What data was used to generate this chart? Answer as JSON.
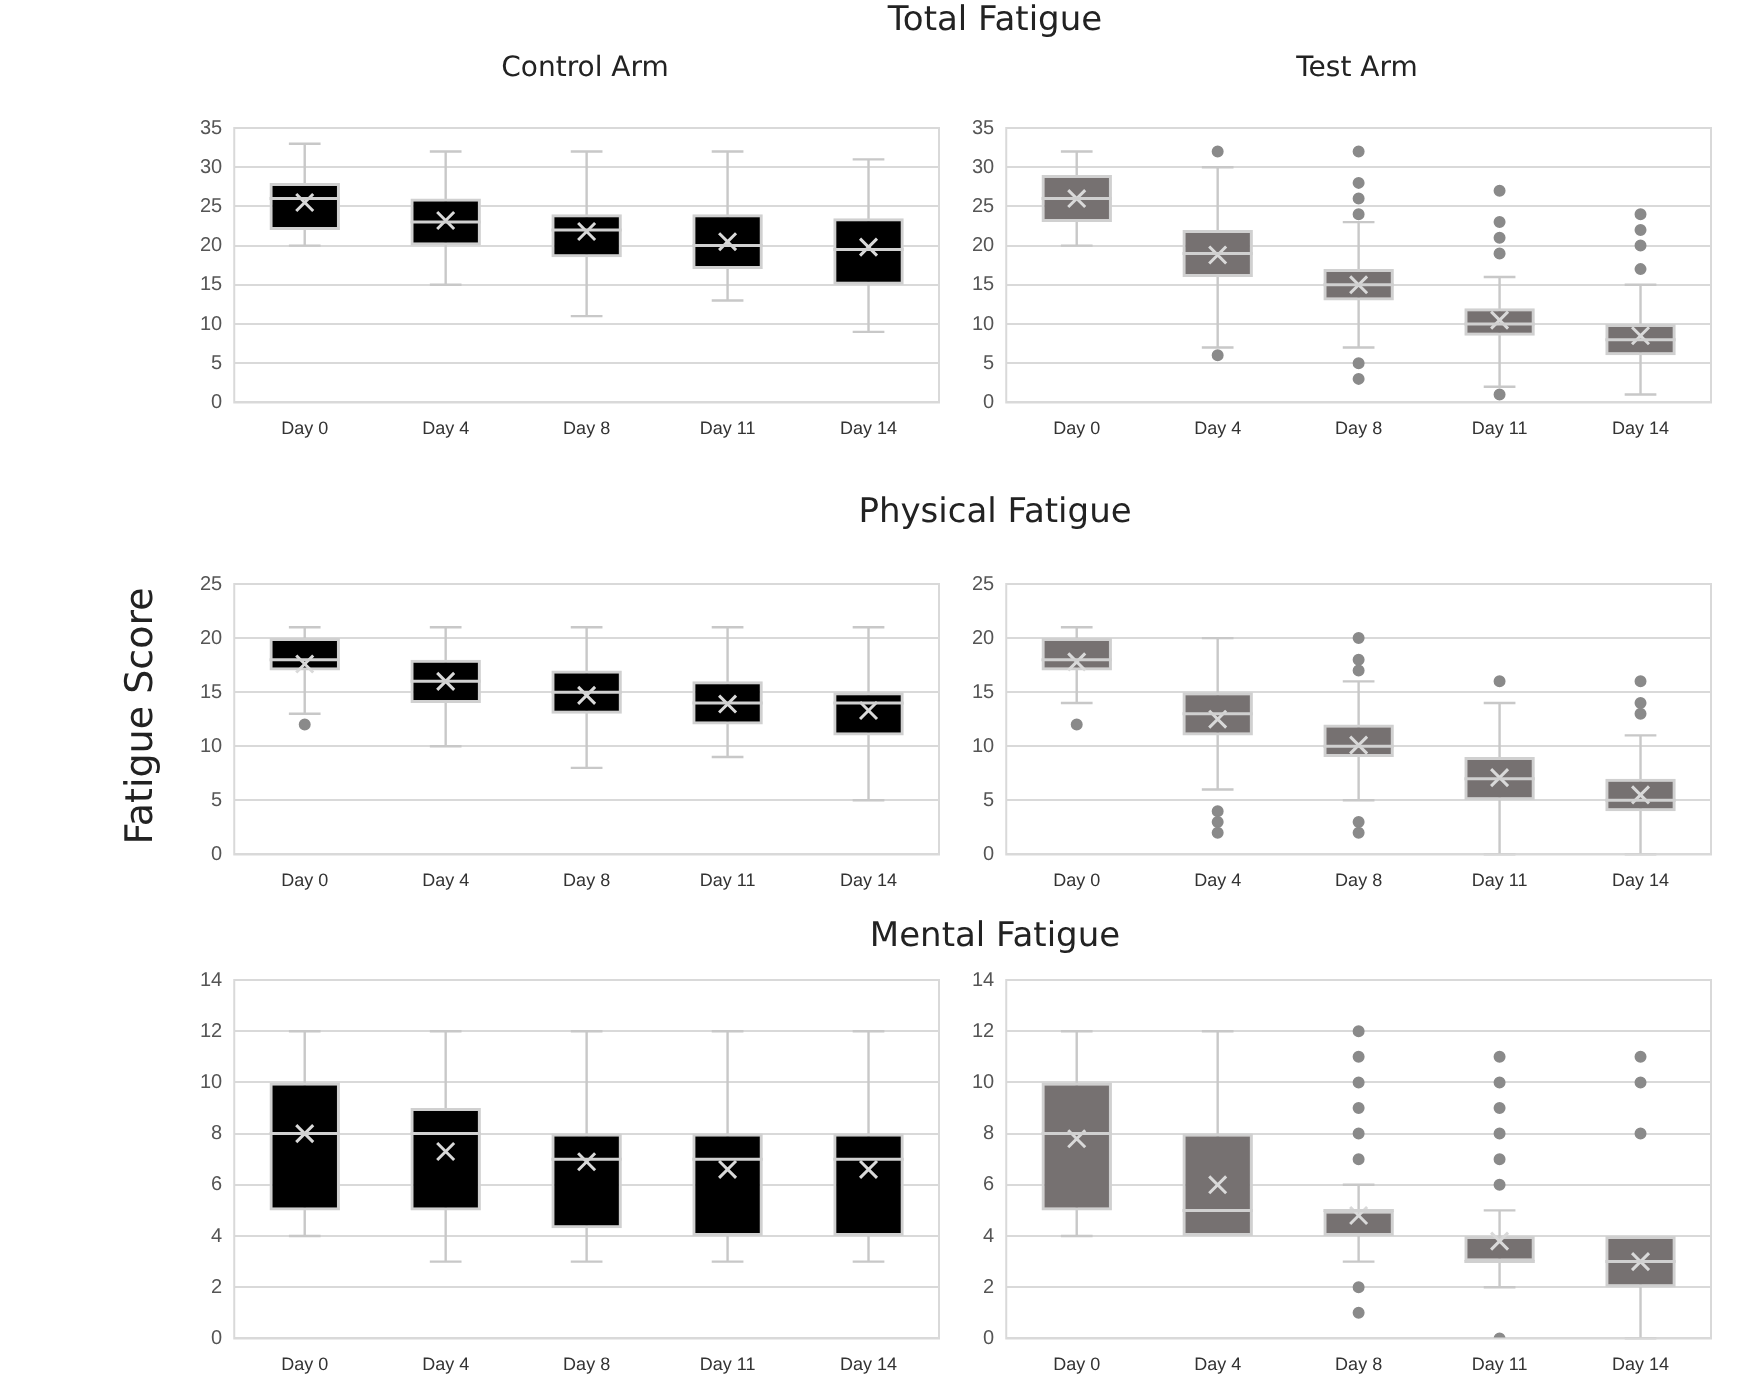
{
  "chart_data": [
    {
      "type": "box",
      "title": "Total Fatigue",
      "subtitle": "Control Arm",
      "categories": [
        "Day 0",
        "Day 4",
        "Day 8",
        "Day 11",
        "Day 14"
      ],
      "color": "#000000",
      "ylim": [
        0,
        35
      ],
      "yticks": [
        0,
        5,
        10,
        15,
        20,
        25,
        30,
        35
      ],
      "grid": "y",
      "marker": "cross",
      "boxes": [
        {
          "low": 20,
          "q1": 22,
          "median": 26,
          "q3": 28,
          "high": 33,
          "mean": 25.5
        },
        {
          "low": 15,
          "q1": 20,
          "median": 23,
          "q3": 26,
          "high": 32,
          "mean": 23.2
        },
        {
          "low": 11,
          "q1": 18.5,
          "median": 22,
          "q3": 24,
          "high": 32,
          "mean": 21.8
        },
        {
          "low": 13,
          "q1": 17,
          "median": 20,
          "q3": 24,
          "high": 32,
          "mean": 20.5
        },
        {
          "low": 9,
          "q1": 15,
          "median": 19.5,
          "q3": 23.5,
          "high": 31,
          "mean": 19.8
        }
      ]
    },
    {
      "type": "box",
      "subtitle": "Test Arm",
      "categories": [
        "Day 0",
        "Day 4",
        "Day 8",
        "Day 11",
        "Day 14"
      ],
      "color": "#767171",
      "ylim": [
        0,
        35
      ],
      "yticks": [
        0,
        5,
        10,
        15,
        20,
        25,
        30,
        35
      ],
      "grid": "y",
      "marker": "cross",
      "boxes": [
        {
          "low": 20,
          "q1": 23,
          "median": 26,
          "q3": 29,
          "high": 32,
          "mean": 26
        },
        {
          "low": 7,
          "q1": 16,
          "median": 19,
          "q3": 22,
          "high": 30,
          "mean": 18.8,
          "outliers": [
            32,
            6
          ]
        },
        {
          "low": 7,
          "q1": 13,
          "median": 15,
          "q3": 17,
          "high": 23,
          "mean": 15,
          "outliers": [
            32,
            28,
            26,
            24,
            5,
            3
          ]
        },
        {
          "low": 2,
          "q1": 8.5,
          "median": 10,
          "q3": 12,
          "high": 16,
          "mean": 10.5,
          "outliers": [
            27,
            23,
            21,
            19,
            1
          ]
        },
        {
          "low": 1,
          "q1": 6,
          "median": 8,
          "q3": 10,
          "high": 15,
          "mean": 8.5,
          "outliers": [
            24,
            22,
            20,
            17
          ]
        }
      ]
    },
    {
      "type": "box",
      "title": "Physical Fatigue",
      "ylabel": "Fatigue Score",
      "categories": [
        "Day 0",
        "Day 4",
        "Day 8",
        "Day 11",
        "Day 14"
      ],
      "color": "#000000",
      "ylim": [
        0,
        25
      ],
      "yticks": [
        0,
        5,
        10,
        15,
        20,
        25
      ],
      "grid": "y",
      "marker": "cross",
      "boxes": [
        {
          "low": 13,
          "q1": 17,
          "median": 18,
          "q3": 20,
          "high": 21,
          "mean": 17.6,
          "outliers": [
            12
          ]
        },
        {
          "low": 10,
          "q1": 14,
          "median": 16,
          "q3": 18,
          "high": 21,
          "mean": 16
        },
        {
          "low": 8,
          "q1": 13,
          "median": 15,
          "q3": 17,
          "high": 21,
          "mean": 14.7
        },
        {
          "low": 9,
          "q1": 12,
          "median": 14,
          "q3": 16,
          "high": 21,
          "mean": 13.9
        },
        {
          "low": 5,
          "q1": 11,
          "median": 14,
          "q3": 15,
          "high": 21,
          "mean": 13.3
        }
      ]
    },
    {
      "type": "box",
      "categories": [
        "Day 0",
        "Day 4",
        "Day 8",
        "Day 11",
        "Day 14"
      ],
      "color": "#767171",
      "ylim": [
        0,
        25
      ],
      "yticks": [
        0,
        5,
        10,
        15,
        20,
        25
      ],
      "grid": "y",
      "marker": "cross",
      "boxes": [
        {
          "low": 14,
          "q1": 17,
          "median": 18,
          "q3": 20,
          "high": 21,
          "mean": 17.8,
          "outliers": [
            12
          ]
        },
        {
          "low": 6,
          "q1": 11,
          "median": 13,
          "q3": 15,
          "high": 20,
          "mean": 12.5,
          "outliers": [
            4,
            3,
            2
          ]
        },
        {
          "low": 5,
          "q1": 9,
          "median": 10,
          "q3": 12,
          "high": 16,
          "mean": 10.1,
          "outliers": [
            20,
            18,
            17,
            3,
            2
          ]
        },
        {
          "low": 0,
          "q1": 5,
          "median": 7,
          "q3": 9,
          "high": 14,
          "mean": 7.1,
          "outliers": [
            16
          ]
        },
        {
          "low": 0,
          "q1": 4,
          "median": 5,
          "q3": 7,
          "high": 11,
          "mean": 5.5,
          "outliers": [
            16,
            14,
            13
          ]
        }
      ]
    },
    {
      "type": "box",
      "title": "Mental Fatigue",
      "categories": [
        "Day 0",
        "Day 4",
        "Day 8",
        "Day 11",
        "Day 14"
      ],
      "color": "#000000",
      "ylim": [
        0,
        14
      ],
      "yticks": [
        0,
        2,
        4,
        6,
        8,
        10,
        12,
        14
      ],
      "grid": "y",
      "marker": "cross",
      "boxes": [
        {
          "low": 4,
          "q1": 5,
          "median": 8,
          "q3": 10,
          "high": 12,
          "mean": 8
        },
        {
          "low": 3,
          "q1": 5,
          "median": 8,
          "q3": 9,
          "high": 12,
          "mean": 7.3
        },
        {
          "low": 3,
          "q1": 4.3,
          "median": 7,
          "q3": 8,
          "high": 12,
          "mean": 6.9
        },
        {
          "low": 3,
          "q1": 4,
          "median": 7,
          "q3": 8,
          "high": 12,
          "mean": 6.6
        },
        {
          "low": 3,
          "q1": 4,
          "median": 7,
          "q3": 8,
          "high": 12,
          "mean": 6.6
        }
      ]
    },
    {
      "type": "box",
      "categories": [
        "Day 0",
        "Day 4",
        "Day 8",
        "Day 11",
        "Day 14"
      ],
      "color": "#767171",
      "ylim": [
        0,
        14
      ],
      "yticks": [
        0,
        2,
        4,
        6,
        8,
        10,
        12,
        14
      ],
      "grid": "y",
      "marker": "cross",
      "boxes": [
        {
          "low": 4,
          "q1": 5,
          "median": 8,
          "q3": 10,
          "high": 12,
          "mean": 7.8
        },
        {
          "low": 4,
          "q1": 4,
          "median": 5,
          "q3": 8,
          "high": 12,
          "mean": 6
        },
        {
          "low": 3,
          "q1": 4,
          "median": 5,
          "q3": 5,
          "high": 6,
          "mean": 4.8,
          "outliers": [
            12,
            11,
            10,
            9,
            8,
            7,
            2,
            1
          ]
        },
        {
          "low": 2,
          "q1": 3,
          "median": 3,
          "q3": 4,
          "high": 5,
          "mean": 3.8,
          "outliers": [
            11,
            10,
            9,
            8,
            7,
            6,
            0
          ]
        },
        {
          "low": 0,
          "q1": 2,
          "median": 3,
          "q3": 4,
          "high": 4,
          "mean": 3,
          "outliers": [
            11,
            10,
            8
          ]
        }
      ]
    }
  ]
}
